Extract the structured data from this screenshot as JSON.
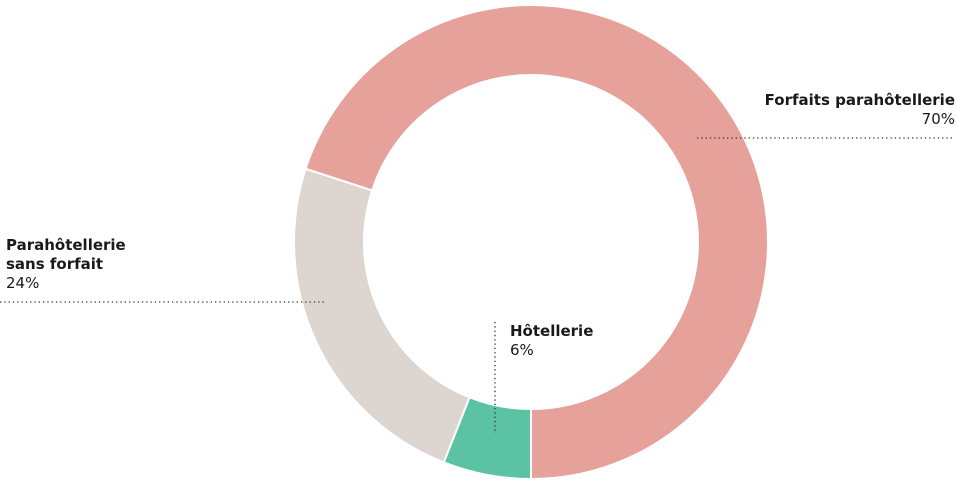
{
  "chart_data": {
    "type": "donut",
    "categories": [
      "Hôtellerie",
      "Parahôtellerie sans forfait",
      "Forfaits parahôtellerie"
    ],
    "values": [
      6,
      24,
      70
    ],
    "value_labels": [
      "6%",
      "24%",
      "70%"
    ],
    "colors": [
      "#5bc3a3",
      "#ddd5cf",
      "#e5a19a"
    ]
  }
}
